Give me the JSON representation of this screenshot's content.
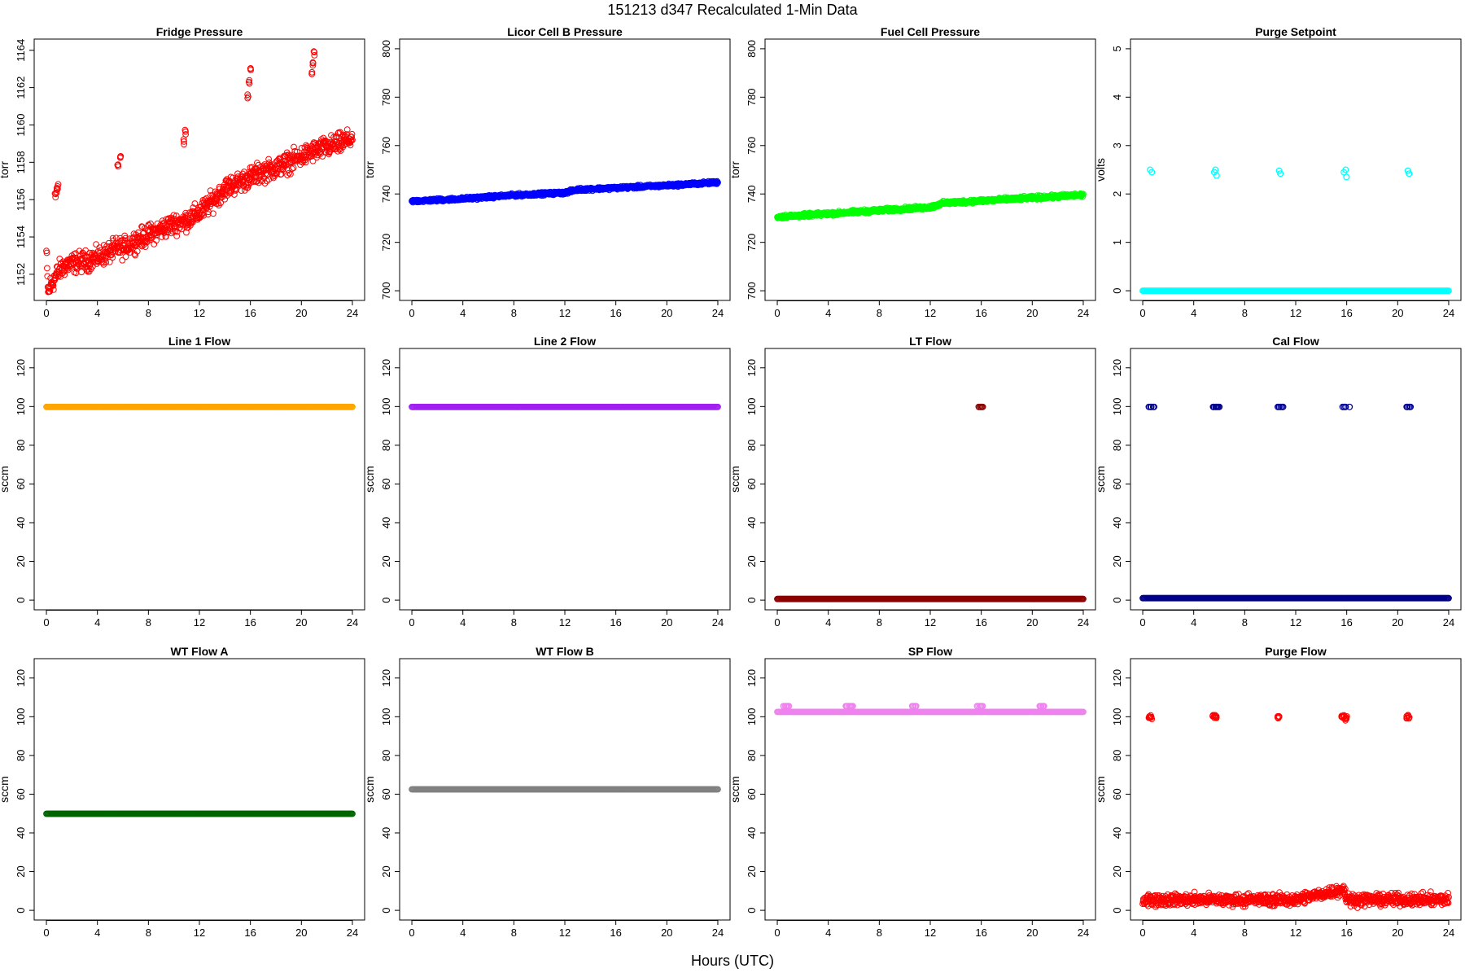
{
  "figure": {
    "title": "151213   d347   Recalculated 1-Min Data",
    "xlabel": "Hours (UTC)"
  },
  "chart_data": [
    {
      "type": "scatter",
      "title": "Fridge Pressure",
      "ylabel": "torr",
      "color": "#ff0000",
      "marker": "open-circle",
      "xlim": [
        0,
        24
      ],
      "xticks": [
        0,
        4,
        8,
        12,
        16,
        20,
        24
      ],
      "ylim": [
        1150.6,
        1164.6
      ],
      "yticks": [
        1152,
        1154,
        1156,
        1158,
        1160,
        1162,
        1164
      ],
      "series": [
        {
          "x": [
            0,
            0.1,
            0.2,
            0.3,
            0.5,
            1,
            1.5,
            2,
            3,
            4,
            5,
            5.5,
            6,
            7,
            8,
            9,
            10,
            11,
            12,
            13,
            14,
            15,
            16,
            17,
            18,
            19,
            20,
            21,
            22,
            23,
            24
          ],
          "y": [
            1153.2,
            1151.3,
            1151.0,
            1151.4,
            1151.6,
            1152.2,
            1152.5,
            1152.6,
            1152.7,
            1152.9,
            1153.2,
            1153.4,
            1153.4,
            1153.8,
            1154.1,
            1154.4,
            1154.7,
            1154.9,
            1155.3,
            1155.9,
            1156.6,
            1156.9,
            1157.2,
            1157.5,
            1157.7,
            1158.0,
            1158.3,
            1158.6,
            1158.8,
            1159.0,
            1159.3
          ]
        },
        {
          "x": [
            0.7,
            0.8,
            0.9,
            5.6,
            5.8,
            10.8,
            10.9,
            15.8,
            15.9,
            16.0,
            20.8,
            20.9,
            21.0
          ],
          "y": [
            1156.2,
            1156.5,
            1156.7,
            1157.8,
            1158.2,
            1159.1,
            1159.6,
            1161.5,
            1162.3,
            1163.0,
            1162.8,
            1163.3,
            1163.8
          ]
        }
      ],
      "spread": 0.45
    },
    {
      "type": "scatter",
      "title": "Licor Cell B Pressure",
      "ylabel": "torr",
      "color": "#0000ff",
      "marker": "open-circle",
      "xlim": [
        0,
        24
      ],
      "xticks": [
        0,
        4,
        8,
        12,
        16,
        20,
        24
      ],
      "ylim": [
        696,
        804
      ],
      "yticks": [
        700,
        720,
        740,
        760,
        780,
        800
      ],
      "series": [
        {
          "x": [
            0,
            4,
            8,
            12,
            13,
            16,
            20,
            24
          ],
          "y": [
            737,
            738,
            739.5,
            740.5,
            741.8,
            742.5,
            743.5,
            744.8
          ]
        }
      ],
      "spread": 0.5
    },
    {
      "type": "scatter",
      "title": "Fuel Cell Pressure",
      "ylabel": "torr",
      "color": "#00ff00",
      "marker": "open-circle",
      "xlim": [
        0,
        24
      ],
      "xticks": [
        0,
        4,
        8,
        12,
        16,
        20,
        24
      ],
      "ylim": [
        696,
        804
      ],
      "yticks": [
        700,
        720,
        740,
        760,
        780,
        800
      ],
      "series": [
        {
          "x": [
            0,
            4,
            8,
            12,
            13,
            16,
            20,
            24
          ],
          "y": [
            730.5,
            731.8,
            733.2,
            734.5,
            736.2,
            737.2,
            738.4,
            739.6
          ]
        }
      ],
      "spread": 0.6
    },
    {
      "type": "scatter",
      "title": "Purge Setpoint",
      "ylabel": "volts",
      "color": "#00ffff",
      "marker": "open-circle",
      "xlim": [
        0,
        24
      ],
      "xticks": [
        0,
        4,
        8,
        12,
        16,
        20,
        24
      ],
      "ylim": [
        -0.2,
        5.2
      ],
      "yticks": [
        0,
        1,
        2,
        3,
        4,
        5
      ],
      "series": [
        {
          "x": [
            0,
            24
          ],
          "y": [
            0,
            0
          ]
        },
        {
          "x": [
            0.6,
            0.7,
            5.6,
            5.7,
            5.8,
            10.7,
            10.8,
            15.8,
            15.9,
            16.0,
            20.8,
            20.9
          ],
          "y": [
            2.5,
            2.45,
            2.45,
            2.5,
            2.38,
            2.48,
            2.42,
            2.45,
            2.5,
            2.35,
            2.48,
            2.42
          ]
        }
      ],
      "spread": 0
    },
    {
      "type": "scatter",
      "title": "Line 1 Flow",
      "ylabel": "sccm",
      "color": "#ffa500",
      "marker": "open-circle",
      "xlim": [
        0,
        24
      ],
      "xticks": [
        0,
        4,
        8,
        12,
        16,
        20,
        24
      ],
      "ylim": [
        -5,
        130
      ],
      "yticks": [
        0,
        20,
        40,
        60,
        80,
        100,
        120
      ],
      "series": [
        {
          "x": [
            0,
            24
          ],
          "y": [
            99.8,
            99.8
          ]
        }
      ],
      "spread": 0
    },
    {
      "type": "scatter",
      "title": "Line 2 Flow",
      "ylabel": "sccm",
      "color": "#a020f0",
      "marker": "open-circle",
      "xlim": [
        0,
        24
      ],
      "xticks": [
        0,
        4,
        8,
        12,
        16,
        20,
        24
      ],
      "ylim": [
        -5,
        130
      ],
      "yticks": [
        0,
        20,
        40,
        60,
        80,
        100,
        120
      ],
      "series": [
        {
          "x": [
            0,
            24
          ],
          "y": [
            99.8,
            99.8
          ]
        }
      ],
      "spread": 0
    },
    {
      "type": "scatter",
      "title": "LT Flow",
      "ylabel": "sccm",
      "color": "#8b0000",
      "marker": "open-circle",
      "xlim": [
        0,
        24
      ],
      "xticks": [
        0,
        4,
        8,
        12,
        16,
        20,
        24
      ],
      "ylim": [
        -5,
        130
      ],
      "yticks": [
        0,
        20,
        40,
        60,
        80,
        100,
        120
      ],
      "series": [
        {
          "x": [
            0,
            24
          ],
          "y": [
            0.6,
            0.6
          ]
        },
        {
          "x": [
            15.8,
            15.9,
            16.0,
            16.1
          ],
          "y": [
            99.8,
            99.8,
            99.8,
            99.8
          ]
        }
      ],
      "spread": 0
    },
    {
      "type": "scatter",
      "title": "Cal Flow",
      "ylabel": "sccm",
      "color": "#00008b",
      "marker": "open-circle",
      "xlim": [
        0,
        24
      ],
      "xticks": [
        0,
        4,
        8,
        12,
        16,
        20,
        24
      ],
      "ylim": [
        -5,
        130
      ],
      "yticks": [
        0,
        20,
        40,
        60,
        80,
        100,
        120
      ],
      "series": [
        {
          "x": [
            0,
            24
          ],
          "y": [
            1,
            1
          ]
        },
        {
          "x": [
            0.5,
            0.6,
            0.7,
            0.8,
            0.9,
            5.5,
            5.6,
            5.7,
            5.8,
            5.9,
            6.0,
            10.6,
            10.7,
            10.8,
            10.9,
            11.0,
            15.7,
            15.8,
            15.9,
            16.2,
            20.7,
            20.8,
            20.9,
            21.0
          ],
          "y": [
            99.8,
            99.8,
            99.8,
            99.8,
            99.8,
            99.8,
            99.8,
            99.8,
            99.8,
            99.8,
            99.8,
            99.8,
            99.8,
            99.8,
            99.8,
            99.8,
            99.8,
            99.8,
            99.8,
            99.8,
            99.8,
            99.8,
            99.8,
            99.8
          ]
        }
      ],
      "spread": 0
    },
    {
      "type": "scatter",
      "title": "WT Flow A",
      "ylabel": "sccm",
      "color": "#006400",
      "marker": "open-circle",
      "xlim": [
        0,
        24
      ],
      "xticks": [
        0,
        4,
        8,
        12,
        16,
        20,
        24
      ],
      "ylim": [
        -5,
        130
      ],
      "yticks": [
        0,
        20,
        40,
        60,
        80,
        100,
        120
      ],
      "series": [
        {
          "x": [
            0,
            24
          ],
          "y": [
            49.9,
            49.9
          ]
        }
      ],
      "spread": 0
    },
    {
      "type": "scatter",
      "title": "WT Flow B",
      "ylabel": "sccm",
      "color": "#808080",
      "marker": "open-circle",
      "xlim": [
        0,
        24
      ],
      "xticks": [
        0,
        4,
        8,
        12,
        16,
        20,
        24
      ],
      "ylim": [
        -5,
        130
      ],
      "yticks": [
        0,
        20,
        40,
        60,
        80,
        100,
        120
      ],
      "series": [
        {
          "x": [
            0,
            24
          ],
          "y": [
            62.5,
            62.5
          ]
        }
      ],
      "spread": 0
    },
    {
      "type": "scatter",
      "title": "SP Flow",
      "ylabel": "sccm",
      "color": "#ee82ee",
      "marker": "open-circle",
      "xlim": [
        0,
        24
      ],
      "xticks": [
        0,
        4,
        8,
        12,
        16,
        20,
        24
      ],
      "ylim": [
        -5,
        130
      ],
      "yticks": [
        0,
        20,
        40,
        60,
        80,
        100,
        120
      ],
      "series": [
        {
          "x": [
            0,
            24
          ],
          "y": [
            102.5,
            102.5
          ]
        },
        {
          "x": [
            0.5,
            0.6,
            0.7,
            0.8,
            0.9,
            5.4,
            5.5,
            5.6,
            5.7,
            5.8,
            5.9,
            10.6,
            10.7,
            10.8,
            10.9,
            15.7,
            15.8,
            15.9,
            16.0,
            16.1,
            20.6,
            20.7,
            20.8,
            20.9
          ],
          "y": [
            105.5,
            105.5,
            105.5,
            105.5,
            105.5,
            105.5,
            105.5,
            105.5,
            105.5,
            105.5,
            105.5,
            105.5,
            105.5,
            105.5,
            105.5,
            105.5,
            105.5,
            105.5,
            105.5,
            105.5,
            105.5,
            105.5,
            105.5,
            105.5
          ]
        }
      ],
      "spread": 0
    },
    {
      "type": "scatter",
      "title": "Purge Flow",
      "ylabel": "sccm",
      "color": "#ff0000",
      "marker": "open-circle",
      "xlim": [
        0,
        24
      ],
      "xticks": [
        0,
        4,
        8,
        12,
        16,
        20,
        24
      ],
      "ylim": [
        -5,
        130
      ],
      "yticks": [
        0,
        20,
        40,
        60,
        80,
        100,
        120
      ],
      "series": [
        {
          "x": [
            0,
            4,
            8,
            12,
            15.8,
            16,
            20,
            24
          ],
          "y": [
            5.5,
            5.5,
            5.5,
            5.5,
            11,
            5.5,
            5.5,
            5.5
          ]
        },
        {
          "x": [
            0.5,
            0.6,
            0.7,
            5.5,
            5.6,
            5.7,
            5.8,
            10.6,
            10.7,
            15.6,
            15.7,
            15.8,
            15.9,
            16.0,
            20.7,
            20.8,
            20.9
          ],
          "y": [
            99.5,
            100,
            99.2,
            100.5,
            99.8,
            100.2,
            99.6,
            99.8,
            100.3,
            100.2,
            99.5,
            100.1,
            98.8,
            99.6,
            99.6,
            100.3,
            99.2
          ]
        }
      ],
      "spread": 2.5
    }
  ]
}
